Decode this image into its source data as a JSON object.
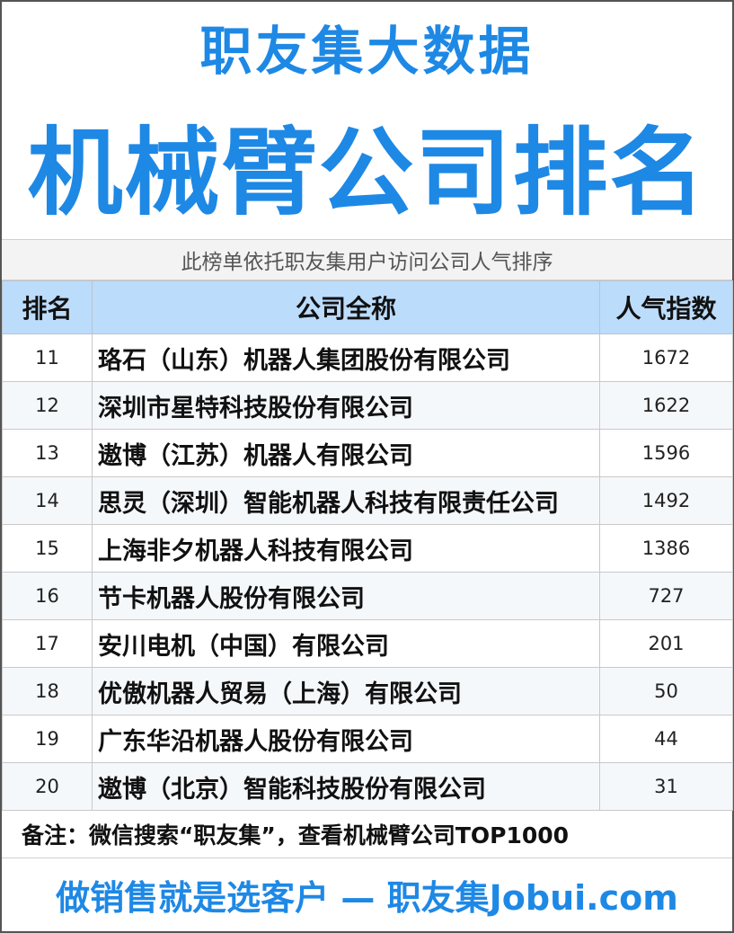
{
  "header": {
    "brand_title": "职友集大数据",
    "main_title": "机械臂公司排名",
    "subtitle": "此榜单依托职友集用户访问公司人气排序"
  },
  "table": {
    "columns": [
      "排名",
      "公司全称",
      "人气指数"
    ],
    "rows": [
      {
        "rank": "11",
        "name": "珞石（山东）机器人集团股份有限公司",
        "score": "1672"
      },
      {
        "rank": "12",
        "name": "深圳市星特科技股份有限公司",
        "score": "1622"
      },
      {
        "rank": "13",
        "name": "遨博（江苏）机器人有限公司",
        "score": "1596"
      },
      {
        "rank": "14",
        "name": "思灵（深圳）智能机器人科技有限责任公司",
        "score": "1492"
      },
      {
        "rank": "15",
        "name": "上海非夕机器人科技有限公司",
        "score": "1386"
      },
      {
        "rank": "16",
        "name": "节卡机器人股份有限公司",
        "score": "727"
      },
      {
        "rank": "17",
        "name": "安川电机（中国）有限公司",
        "score": "201"
      },
      {
        "rank": "18",
        "name": "优傲机器人贸易（上海）有限公司",
        "score": "50"
      },
      {
        "rank": "19",
        "name": "广东华沿机器人股份有限公司",
        "score": "44"
      },
      {
        "rank": "20",
        "name": "遨博（北京）智能科技股份有限公司",
        "score": "31"
      }
    ]
  },
  "note": "备注：微信搜索“职友集”，查看机械臂公司TOP1000",
  "footer": "做销售就是选客户 — 职友集Jobui.com",
  "colors": {
    "accent": "#1e88e5",
    "header_row": "#bcdcfb"
  }
}
